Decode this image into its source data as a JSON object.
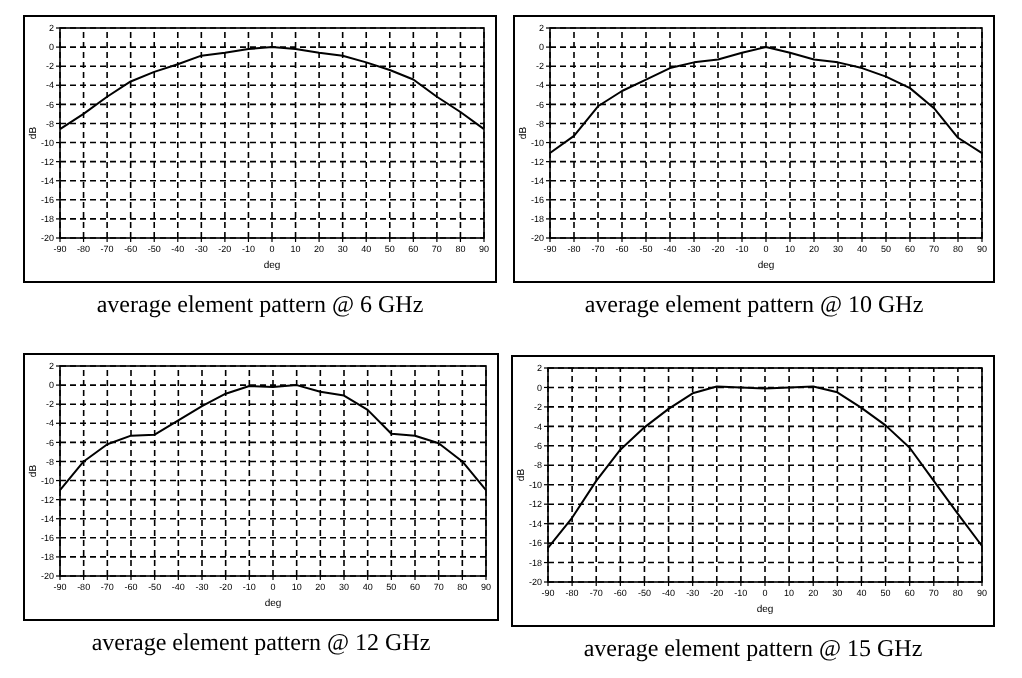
{
  "chart_data": [
    {
      "type": "line",
      "title": "average element pattern @ 6 GHz",
      "xlabel": "deg",
      "ylabel": "dB",
      "xlim": [
        -90,
        90
      ],
      "ylim": [
        -20,
        2
      ],
      "xticks": [
        -90,
        -80,
        -70,
        -60,
        -50,
        -40,
        -30,
        -20,
        -10,
        0,
        10,
        20,
        30,
        40,
        50,
        60,
        70,
        80,
        90
      ],
      "yticks": [
        -20,
        -18,
        -16,
        -14,
        -12,
        -10,
        -8,
        -6,
        -4,
        -2,
        0,
        2
      ],
      "grid": true,
      "line_style": "solid",
      "x": [
        -90,
        -80,
        -70,
        -60,
        -50,
        -40,
        -30,
        -20,
        -10,
        0,
        10,
        20,
        30,
        40,
        50,
        60,
        70,
        80,
        90
      ],
      "series": [
        {
          "color": "#000000",
          "values": [
            -8.6,
            -7.0,
            -5.2,
            -3.6,
            -2.6,
            -1.8,
            -0.9,
            -0.6,
            -0.2,
            0,
            -0.2,
            -0.6,
            -0.9,
            -1.6,
            -2.4,
            -3.4,
            -5.2,
            -6.8,
            -8.6
          ]
        }
      ]
    },
    {
      "type": "line",
      "title": "average element pattern @ 10 GHz",
      "xlabel": "deg",
      "ylabel": "dB",
      "xlim": [
        -90,
        90
      ],
      "ylim": [
        -20,
        2
      ],
      "xticks": [
        -90,
        -80,
        -70,
        -60,
        -50,
        -40,
        -30,
        -20,
        -10,
        0,
        10,
        20,
        30,
        40,
        50,
        60,
        70,
        80,
        90
      ],
      "yticks": [
        -20,
        -18,
        -16,
        -14,
        -12,
        -10,
        -8,
        -6,
        -4,
        -2,
        0,
        2
      ],
      "grid": true,
      "line_style": "solid",
      "x": [
        -90,
        -80,
        -70,
        -60,
        -50,
        -40,
        -30,
        -20,
        -10,
        0,
        10,
        20,
        30,
        40,
        50,
        60,
        70,
        80,
        90
      ],
      "series": [
        {
          "color": "#000000",
          "values": [
            -11.1,
            -9.3,
            -6.2,
            -4.6,
            -3.4,
            -2.2,
            -1.6,
            -1.3,
            -0.6,
            0,
            -0.6,
            -1.3,
            -1.6,
            -2.2,
            -3.1,
            -4.3,
            -6.4,
            -9.5,
            -11.1
          ]
        }
      ]
    },
    {
      "type": "line",
      "title": "average element pattern @ 12 GHz",
      "xlabel": "deg",
      "ylabel": "dB",
      "xlim": [
        -90,
        90
      ],
      "ylim": [
        -20,
        2
      ],
      "xticks": [
        -90,
        -80,
        -70,
        -60,
        -50,
        -40,
        -30,
        -20,
        -10,
        0,
        10,
        20,
        30,
        40,
        50,
        60,
        70,
        80,
        90
      ],
      "yticks": [
        -20,
        -18,
        -16,
        -14,
        -12,
        -10,
        -8,
        -6,
        -4,
        -2,
        0,
        2
      ],
      "grid": true,
      "line_style": "solid",
      "x": [
        -90,
        -80,
        -70,
        -60,
        -50,
        -40,
        -30,
        -20,
        -10,
        0,
        10,
        20,
        30,
        40,
        50,
        60,
        70,
        80,
        90
      ],
      "series": [
        {
          "color": "#000000",
          "values": [
            -11.0,
            -8.0,
            -6.2,
            -5.3,
            -5.2,
            -3.7,
            -2.2,
            -0.9,
            -0.1,
            -0.2,
            0,
            -0.7,
            -1.1,
            -2.6,
            -5.1,
            -5.3,
            -6.1,
            -8.0,
            -11.0
          ]
        }
      ]
    },
    {
      "type": "line",
      "title": "average element pattern @ 15 GHz",
      "xlabel": "deg",
      "ylabel": "dB",
      "xlim": [
        -90,
        90
      ],
      "ylim": [
        -20,
        2
      ],
      "xticks": [
        -90,
        -80,
        -70,
        -60,
        -50,
        -40,
        -30,
        -20,
        -10,
        0,
        10,
        20,
        30,
        40,
        50,
        60,
        70,
        80,
        90
      ],
      "yticks": [
        -20,
        -18,
        -16,
        -14,
        -12,
        -10,
        -8,
        -6,
        -4,
        -2,
        0,
        2
      ],
      "grid": true,
      "line_style": "solid",
      "x": [
        -90,
        -80,
        -70,
        -60,
        -50,
        -40,
        -30,
        -20,
        -10,
        0,
        10,
        20,
        30,
        40,
        50,
        60,
        70,
        80,
        90
      ],
      "series": [
        {
          "color": "#000000",
          "values": [
            -16.5,
            -13.4,
            -9.6,
            -6.4,
            -4.1,
            -2.2,
            -0.6,
            0.1,
            0,
            -0.1,
            0,
            0.1,
            -0.5,
            -2.1,
            -3.9,
            -6.2,
            -9.6,
            -13.0,
            -16.3
          ]
        }
      ]
    }
  ]
}
